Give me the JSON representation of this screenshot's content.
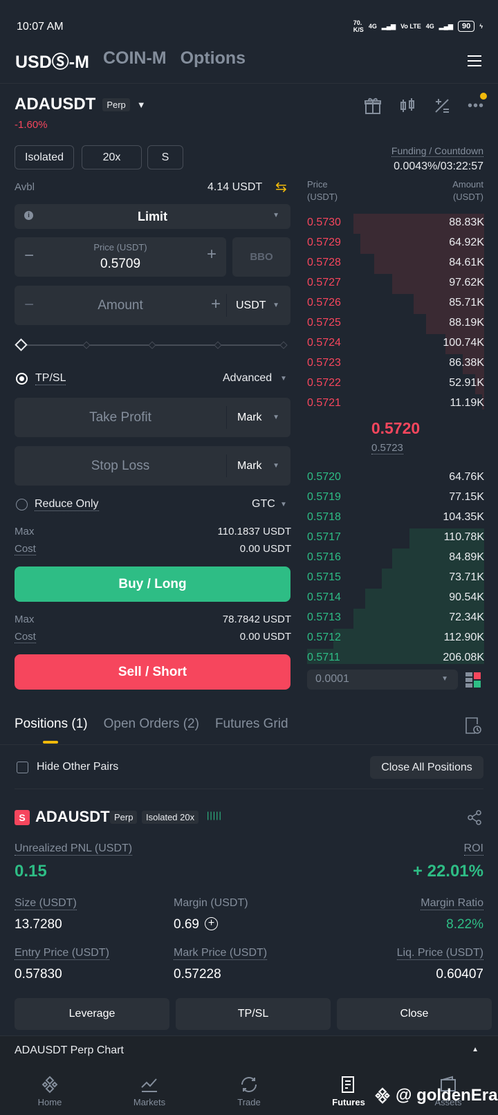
{
  "status": {
    "time": "10:07 AM",
    "speed": "70.",
    "speed_unit": "K/S",
    "net1": "4G",
    "net2": "Vo LTE",
    "net3": "4G",
    "battery": "90"
  },
  "topnav": {
    "tab1": "USDⓈ-M",
    "tab2": "COIN-M",
    "tab3": "Options"
  },
  "symbol": {
    "name": "ADAUSDT",
    "tag": "Perp",
    "change": "-1.60%"
  },
  "controls": {
    "margin_mode": "Isolated",
    "leverage": "20x",
    "mode": "S"
  },
  "funding": {
    "label": "Funding / Countdown",
    "value": "0.0043%/03:22:57"
  },
  "order": {
    "avbl_label": "Avbl",
    "avbl_value": "4.14 USDT",
    "type": "Limit",
    "price_label": "Price (USDT)",
    "price_value": "0.5709",
    "bbo": "BBO",
    "amount_placeholder": "Amount",
    "amount_unit": "USDT",
    "tpsl_label": "TP/SL",
    "advanced": "Advanced",
    "take_profit": "Take Profit",
    "stop_loss": "Stop Loss",
    "mark": "Mark",
    "reduce_only": "Reduce Only",
    "tif": "GTC",
    "max_label": "Max",
    "cost_label": "Cost",
    "buy_max": "110.1837 USDT",
    "buy_cost": "0.00 USDT",
    "buy_btn": "Buy / Long",
    "sell_max": "78.7842 USDT",
    "sell_cost": "0.00 USDT",
    "sell_btn": "Sell / Short"
  },
  "orderbook": {
    "price_header": "Price",
    "price_unit": "(USDT)",
    "amount_header": "Amount",
    "amount_unit": "(USDT)",
    "asks": [
      {
        "price": "0.5730",
        "amount": "88.83K",
        "depth": 0.74
      },
      {
        "price": "0.5729",
        "amount": "64.92K",
        "depth": 0.7
      },
      {
        "price": "0.5728",
        "amount": "84.61K",
        "depth": 0.62
      },
      {
        "price": "0.5727",
        "amount": "97.62K",
        "depth": 0.52
      },
      {
        "price": "0.5726",
        "amount": "85.71K",
        "depth": 0.4
      },
      {
        "price": "0.5725",
        "amount": "88.19K",
        "depth": 0.33
      },
      {
        "price": "0.5724",
        "amount": "100.74K",
        "depth": 0.22
      },
      {
        "price": "0.5723",
        "amount": "86.38K",
        "depth": 0.12
      },
      {
        "price": "0.5722",
        "amount": "52.91K",
        "depth": 0.05
      },
      {
        "price": "0.5721",
        "amount": "11.19K",
        "depth": 0.01
      }
    ],
    "last_price": "0.5720",
    "mark_price": "0.5723",
    "bids": [
      {
        "price": "0.5720",
        "amount": "64.76K",
        "depth": 0.0
      },
      {
        "price": "0.5719",
        "amount": "77.15K",
        "depth": 0.0
      },
      {
        "price": "0.5718",
        "amount": "104.35K",
        "depth": 0.0
      },
      {
        "price": "0.5717",
        "amount": "110.78K",
        "depth": 0.42
      },
      {
        "price": "0.5716",
        "amount": "84.89K",
        "depth": 0.52
      },
      {
        "price": "0.5715",
        "amount": "73.71K",
        "depth": 0.58
      },
      {
        "price": "0.5714",
        "amount": "90.54K",
        "depth": 0.67
      },
      {
        "price": "0.5713",
        "amount": "72.34K",
        "depth": 0.74
      },
      {
        "price": "0.5712",
        "amount": "112.90K",
        "depth": 0.85
      },
      {
        "price": "0.5711",
        "amount": "206.08K",
        "depth": 1.0
      }
    ],
    "tick": "0.0001"
  },
  "tabs": {
    "positions": "Positions (1)",
    "open_orders": "Open Orders (2)",
    "grid": "Futures Grid"
  },
  "positions": {
    "hide_other": "Hide Other Pairs",
    "close_all": "Close All Positions",
    "side": "S",
    "symbol": "ADAUSDT",
    "perp": "Perp",
    "mode": "Isolated 20x",
    "pnl_label": "Unrealized PNL (USDT)",
    "pnl": "0.15",
    "roi_label": "ROI",
    "roi": "+ 22.01%",
    "size_label": "Size (USDT)",
    "size": "13.7280",
    "margin_label": "Margin (USDT)",
    "margin": "0.69",
    "ratio_label": "Margin Ratio",
    "ratio": "8.22%",
    "entry_label": "Entry Price (USDT)",
    "entry": "0.57830",
    "mark_label": "Mark Price (USDT)",
    "mark": "0.57228",
    "liq_label": "Liq. Price (USDT)",
    "liq": "0.60407",
    "leverage_btn": "Leverage",
    "tpsl_btn": "TP/SL",
    "close_btn": "Close"
  },
  "chart_bar": {
    "label": "ADAUSDT Perp Chart"
  },
  "bottomnav": {
    "home": "Home",
    "markets": "Markets",
    "trade": "Trade",
    "futures": "Futures",
    "assets": "Assets"
  },
  "watermark": "@ goldenEra"
}
